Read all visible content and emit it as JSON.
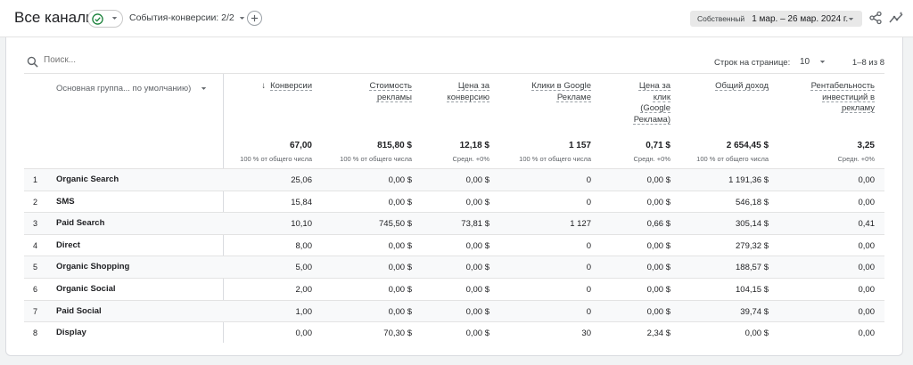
{
  "header": {
    "title": "Все каналы",
    "conversion_filter": "События-конверсии: 2/2",
    "date_custom_label": "Собственный",
    "date_range": "1 мар. – 26 мар. 2024 г."
  },
  "search": {
    "placeholder": "Поиск..."
  },
  "pagination": {
    "rows_label": "Строк на странице:",
    "rows_value": "10",
    "range": "1–8 из 8"
  },
  "table": {
    "dimension_header": "Основная группа... по умолчанию)",
    "columns": [
      {
        "label": "Конверсии",
        "lines": [
          "Конверсии"
        ],
        "total": "67,00",
        "sub": "100 % от общего числа",
        "sorted": true
      },
      {
        "label": "Стоимость рекламы",
        "lines": [
          "Стоимость",
          "рекламы"
        ],
        "total": "815,80 $",
        "sub": "100 % от общего числа"
      },
      {
        "label": "Цена за конверсию",
        "lines": [
          "Цена за",
          "конверсию"
        ],
        "total": "12,18 $",
        "sub": "Средн. +0%"
      },
      {
        "label": "Клики в Google Рекламе",
        "lines": [
          "Клики в Google",
          "Рекламе"
        ],
        "total": "1 157",
        "sub": "100 % от общего числа"
      },
      {
        "label": "Цена за клик (Google Реклама)",
        "lines": [
          "Цена за",
          "клик",
          "(Google",
          "Реклама)"
        ],
        "total": "0,71 $",
        "sub": "Средн. +0%"
      },
      {
        "label": "Общий доход",
        "lines": [
          "Общий доход"
        ],
        "total": "2 654,45 $",
        "sub": "100 % от общего числа"
      },
      {
        "label": "Рентабельность инвестиций в рекламу",
        "lines": [
          "Рентабельность",
          "инвестиций в",
          "рекламу"
        ],
        "total": "3,25",
        "sub": "Средн. +0%"
      }
    ],
    "rows": [
      {
        "index": "1",
        "channel": "Organic Search",
        "values": [
          "25,06",
          "0,00 $",
          "0,00 $",
          "0",
          "0,00 $",
          "1 191,36 $",
          "0,00"
        ]
      },
      {
        "index": "2",
        "channel": "SMS",
        "values": [
          "15,84",
          "0,00 $",
          "0,00 $",
          "0",
          "0,00 $",
          "546,18 $",
          "0,00"
        ]
      },
      {
        "index": "3",
        "channel": "Paid Search",
        "values": [
          "10,10",
          "745,50 $",
          "73,81 $",
          "1 127",
          "0,66 $",
          "305,14 $",
          "0,41"
        ]
      },
      {
        "index": "4",
        "channel": "Direct",
        "values": [
          "8,00",
          "0,00 $",
          "0,00 $",
          "0",
          "0,00 $",
          "279,32 $",
          "0,00"
        ]
      },
      {
        "index": "5",
        "channel": "Organic Shopping",
        "values": [
          "5,00",
          "0,00 $",
          "0,00 $",
          "0",
          "0,00 $",
          "188,57 $",
          "0,00"
        ]
      },
      {
        "index": "6",
        "channel": "Organic Social",
        "values": [
          "2,00",
          "0,00 $",
          "0,00 $",
          "0",
          "0,00 $",
          "104,15 $",
          "0,00"
        ]
      },
      {
        "index": "7",
        "channel": "Paid Social",
        "values": [
          "1,00",
          "0,00 $",
          "0,00 $",
          "0",
          "0,00 $",
          "39,74 $",
          "0,00"
        ]
      },
      {
        "index": "8",
        "channel": "Display",
        "values": [
          "0,00",
          "70,30 $",
          "0,00 $",
          "30",
          "2,34 $",
          "0,00 $",
          "0,00"
        ]
      }
    ]
  },
  "colors": {
    "accent_green": "#188038",
    "text": "#202124",
    "muted": "#5f6368",
    "row_alt": "#f8f9fa"
  },
  "icons": [
    "check-circle-icon",
    "chevron-down-icon",
    "add-icon",
    "share-icon",
    "insights-icon",
    "search-icon",
    "sort-arrow-down-icon"
  ]
}
